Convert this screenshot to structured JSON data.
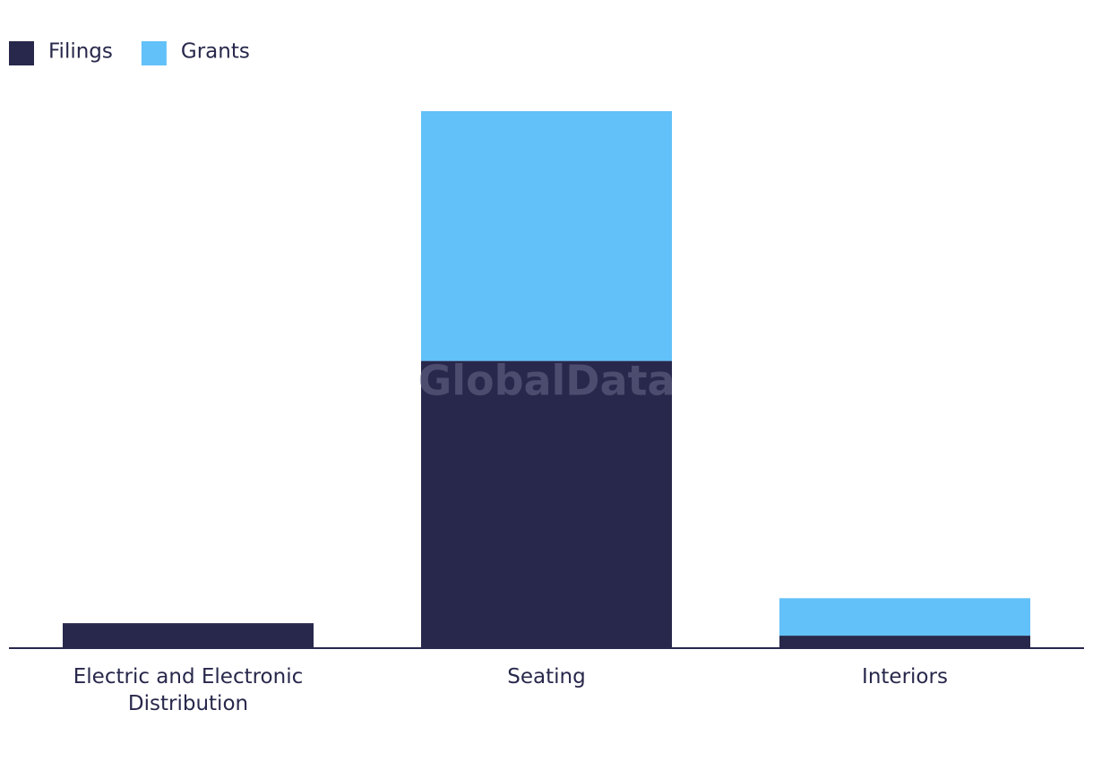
{
  "chart_data": {
    "type": "stacked-bar",
    "categories": [
      "Electric and Electronic Distribution",
      "Seating",
      "Interiors"
    ],
    "series": [
      {
        "name": "Filings",
        "color": "#28284c",
        "values": [
          2,
          23,
          1
        ]
      },
      {
        "name": "Grants",
        "color": "#62c1f8",
        "values": [
          0,
          20,
          3
        ]
      }
    ],
    "legend": "top-left",
    "watermark": "GlobalData"
  }
}
